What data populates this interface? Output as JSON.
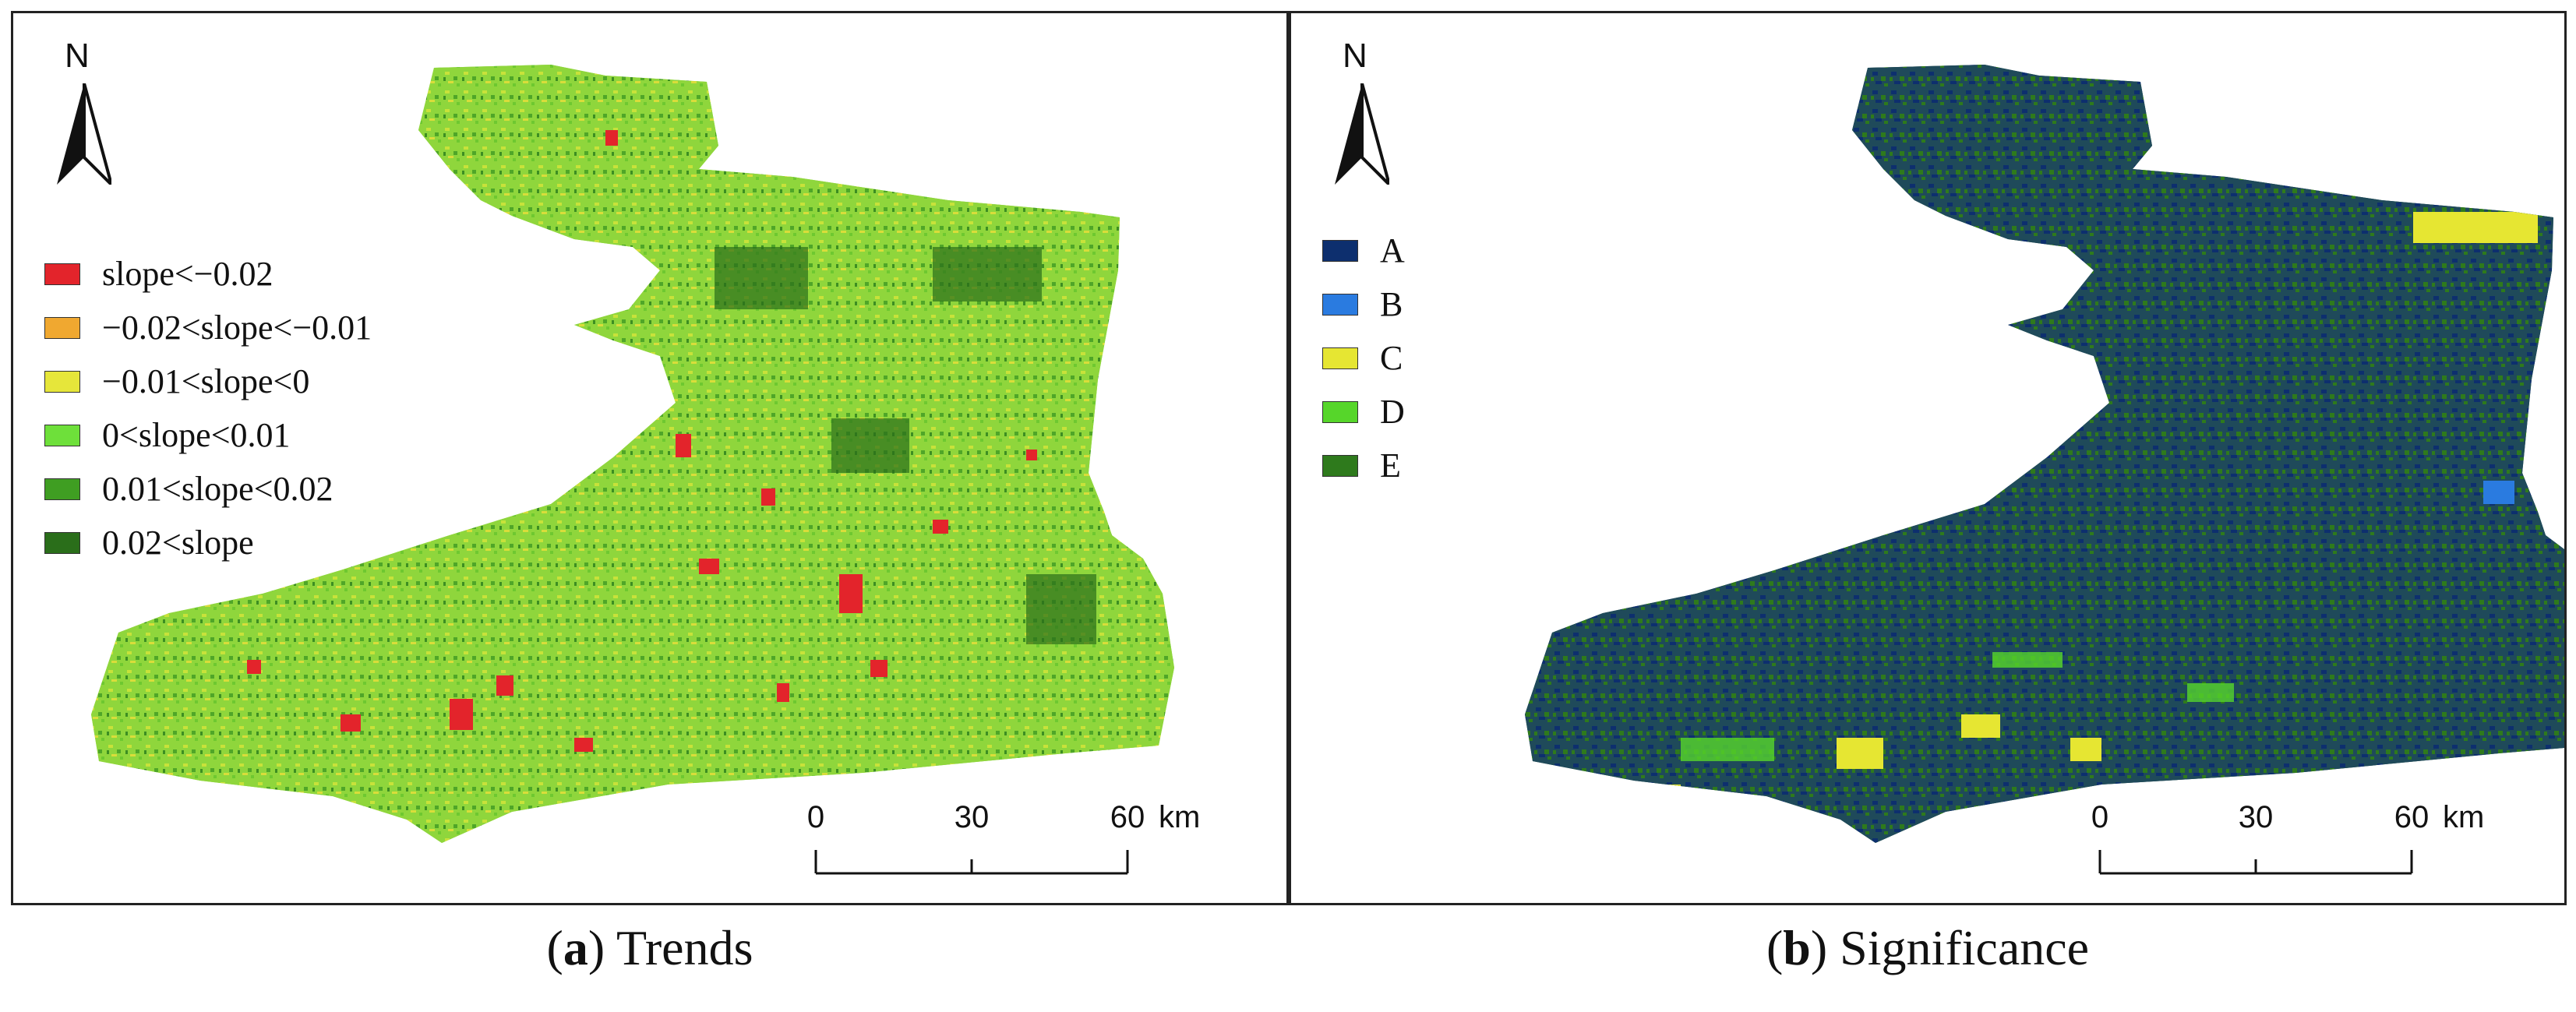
{
  "panel_a": {
    "north_label": "N",
    "legend": [
      {
        "label": "slope<−0.02",
        "color": "#e3242b"
      },
      {
        "label": "−0.02<slope<−0.01",
        "color": "#f0a830"
      },
      {
        "label": "−0.01<slope<0",
        "color": "#e6e63a"
      },
      {
        "label": "0<slope<0.01",
        "color": "#6ee03a"
      },
      {
        "label": "0.01<slope<0.02",
        "color": "#3f9e22"
      },
      {
        "label": "0.02<slope",
        "color": "#2a6e1a"
      }
    ],
    "scale": {
      "ticks": [
        "0",
        "30",
        "60"
      ],
      "unit": "km"
    },
    "caption": {
      "letter": "a",
      "text": "Trends"
    },
    "map_fill": "#8fd63c"
  },
  "panel_b": {
    "north_label": "N",
    "legend": [
      {
        "label": "A",
        "color": "#0d2f6e"
      },
      {
        "label": "B",
        "color": "#2a7be0"
      },
      {
        "label": "C",
        "color": "#e6e632"
      },
      {
        "label": "D",
        "color": "#56d62a"
      },
      {
        "label": "E",
        "color": "#2e7a1c"
      }
    ],
    "scale": {
      "ticks": [
        "0",
        "30",
        "60"
      ],
      "unit": "km"
    },
    "caption": {
      "letter": "b",
      "text": "Significance"
    },
    "map_fill": "#1d4a3a"
  }
}
